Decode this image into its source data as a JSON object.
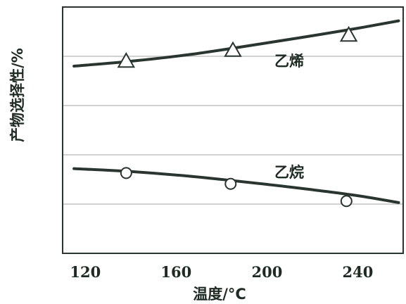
{
  "chart_data": {
    "type": "line",
    "title": "",
    "xlabel": "温度/°C",
    "ylabel": "产物选择性/%",
    "xlim": [
      110,
      260
    ],
    "ylim": [
      0,
      5
    ],
    "x_ticks": [
      120,
      160,
      200,
      240
    ],
    "x_tick_labels": [
      "120",
      "160",
      "200",
      "240"
    ],
    "y_ticks": [
      1,
      2,
      3,
      4
    ],
    "y_tick_labels": [],
    "grid": "horizontal",
    "series": [
      {
        "name": "乙烯",
        "style": "line-with-triangle-markers",
        "curve_x": [
          115,
          140,
          165,
          190,
          215,
          240,
          258
        ],
        "curve_y": [
          3.8,
          3.9,
          4.03,
          4.2,
          4.38,
          4.57,
          4.72
        ],
        "marker_x": [
          138,
          185,
          236
        ],
        "marker_y": [
          3.9,
          4.12,
          4.43
        ]
      },
      {
        "name": "乙烷",
        "style": "line-with-circle-markers",
        "curve_x": [
          115,
          140,
          165,
          190,
          215,
          240,
          258
        ],
        "curve_y": [
          1.72,
          1.66,
          1.57,
          1.45,
          1.32,
          1.17,
          1.03
        ],
        "marker_x": [
          138,
          184,
          235
        ],
        "marker_y": [
          1.63,
          1.41,
          1.06
        ]
      }
    ]
  }
}
